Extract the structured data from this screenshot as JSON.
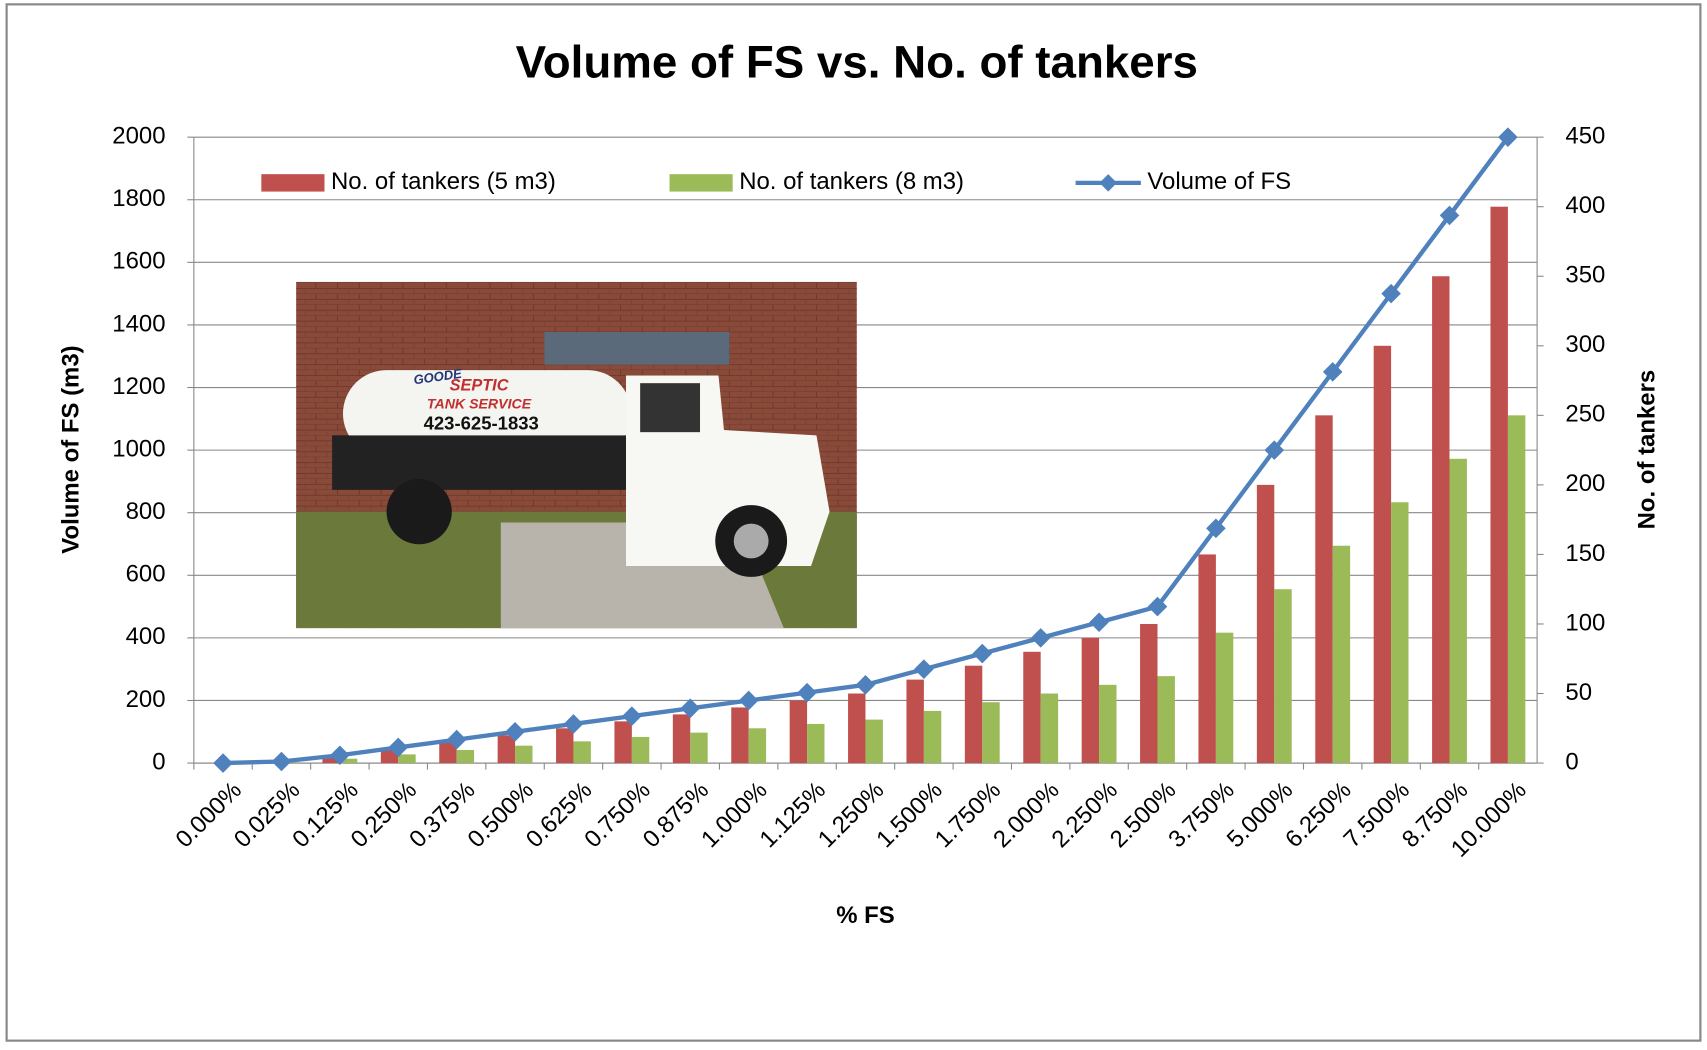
{
  "chart_data": {
    "type": "bar-line",
    "title": "Volume of FS vs. No. of tankers",
    "x_label": "% FS",
    "y_label": "Volume of FS (m3)",
    "y2_label": "No. of tankers",
    "categories": [
      "0.000%",
      "0.025%",
      "0.125%",
      "0.250%",
      "0.375%",
      "0.500%",
      "0.625%",
      "0.750%",
      "0.875%",
      "1.000%",
      "1.125%",
      "1.250%",
      "1.500%",
      "1.750%",
      "2.000%",
      "2.250%",
      "2.500%",
      "3.750%",
      "5.000%",
      "6.250%",
      "7.500%",
      "8.750%",
      "10.000%"
    ],
    "series": [
      {
        "name": "No. of tankers (5 m3)",
        "type": "bar",
        "axis": "y2",
        "color": "#c0504d",
        "values": [
          0,
          1,
          5,
          10,
          15,
          20,
          25,
          30,
          35,
          40,
          45,
          50,
          60,
          70,
          80,
          90,
          100,
          150,
          200,
          250,
          300,
          350,
          400
        ]
      },
      {
        "name": "No. of tankers (8 m3)",
        "type": "bar",
        "axis": "y2",
        "color": "#9bbb59",
        "values": [
          0,
          0.625,
          3.125,
          6.25,
          9.375,
          12.5,
          15.625,
          18.75,
          21.875,
          25,
          28.125,
          31.25,
          37.5,
          43.75,
          50,
          56.25,
          62.5,
          93.75,
          125,
          156.25,
          187.5,
          218.75,
          250
        ]
      },
      {
        "name": "Volume of FS",
        "type": "line",
        "axis": "y",
        "color": "#4f81bd",
        "values": [
          0,
          5,
          25,
          50,
          75,
          100,
          125,
          150,
          175,
          200,
          225,
          250,
          300,
          350,
          400,
          450,
          500,
          750,
          1000,
          1250,
          1500,
          1750,
          2000
        ]
      }
    ],
    "ylim": [
      0,
      2000
    ],
    "yticks": [
      0,
      200,
      400,
      600,
      800,
      1000,
      1200,
      1400,
      1600,
      1800,
      2000
    ],
    "y2lim": [
      0,
      450
    ],
    "y2ticks": [
      0,
      50,
      100,
      150,
      200,
      250,
      300,
      350,
      400,
      450
    ],
    "grid": true,
    "legend": "top",
    "photo_text": [
      "GOODE",
      "SEPTIC",
      "TANK SERVICE",
      "423-625-1833"
    ]
  }
}
